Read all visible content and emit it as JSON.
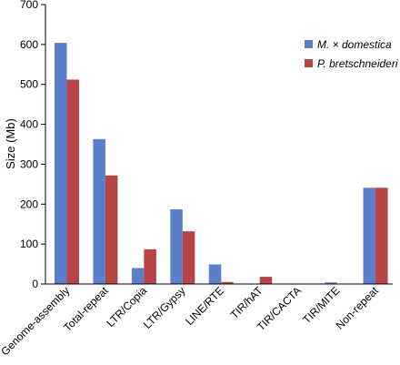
{
  "chart_data": {
    "type": "bar",
    "title": "",
    "xlabel": "",
    "ylabel": "Size (Mb)",
    "ylim": [
      0,
      700
    ],
    "yticks": [
      0,
      100,
      200,
      300,
      400,
      500,
      600,
      700
    ],
    "grid": false,
    "legend_position": "top-right",
    "categories": [
      "Genome-assembly",
      "Total-repeat",
      "LTR/Copia",
      "LTR/Gypsy",
      "LINE/RTE",
      "TIR/hAT",
      "TIR/CACTA",
      "TIR/MITE",
      "Non-repeat"
    ],
    "category_emphasis": [
      "large",
      "large",
      "small",
      "small",
      "small",
      "small",
      "small",
      "small",
      "large"
    ],
    "series": [
      {
        "name": "M. × domestica",
        "color": "#5B7FCB",
        "values": [
          604,
          363,
          40,
          187,
          49,
          0,
          1,
          4,
          241
        ]
      },
      {
        "name": "P. bretschneideri",
        "color": "#B84545",
        "values": [
          512,
          272,
          87,
          132,
          5,
          18,
          1,
          1,
          241
        ]
      }
    ]
  }
}
